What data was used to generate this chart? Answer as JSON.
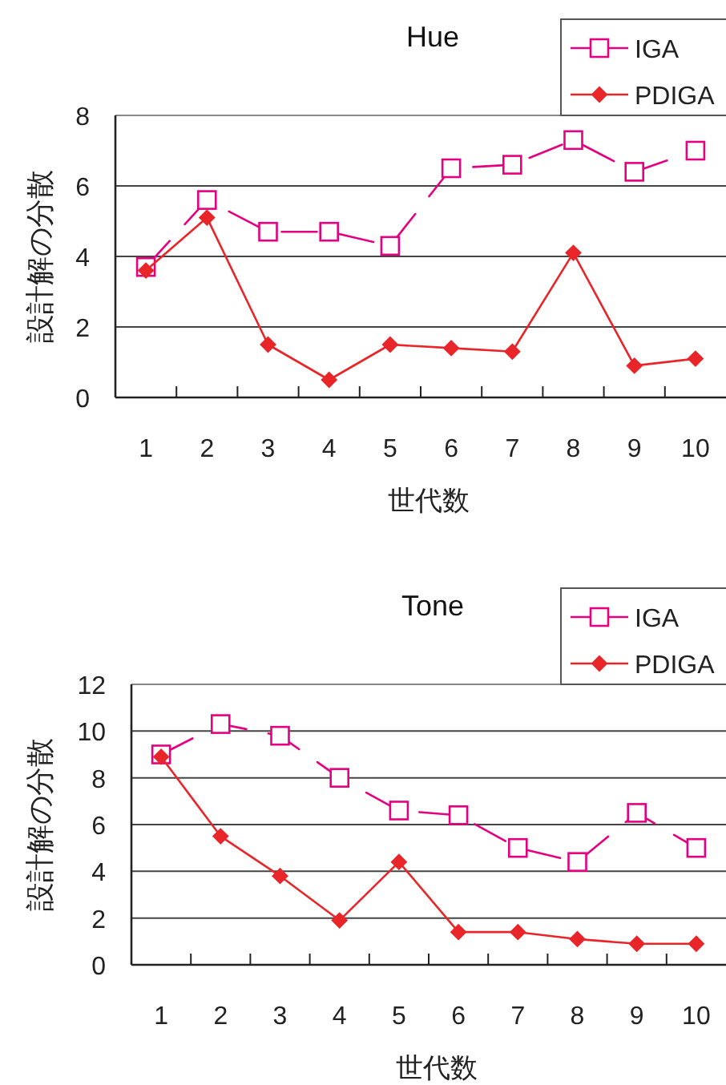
{
  "chart_data": [
    {
      "type": "line",
      "title": "Hue",
      "xlabel": "世代数",
      "ylabel": "設計解の分散",
      "categories": [
        "1",
        "2",
        "3",
        "4",
        "5",
        "6",
        "7",
        "8",
        "9",
        "10"
      ],
      "ylim": [
        0,
        8
      ],
      "yticks": [
        0,
        2,
        4,
        6,
        8
      ],
      "grid": "y",
      "legend": "top right",
      "series": [
        {
          "name": "IGA",
          "color": "#e4007f",
          "marker": "square",
          "line_style": "dashed",
          "values": [
            3.7,
            5.6,
            4.7,
            4.7,
            4.3,
            6.5,
            6.6,
            7.3,
            6.4,
            7.0
          ]
        },
        {
          "name": "PDIGA",
          "color": "#e8262a",
          "marker": "diamond",
          "line_style": "solid",
          "values": [
            3.6,
            5.1,
            1.5,
            0.5,
            1.5,
            1.4,
            1.3,
            4.1,
            0.9,
            1.1
          ]
        }
      ]
    },
    {
      "type": "line",
      "title": "Tone",
      "xlabel": "世代数",
      "ylabel": "設計解の分散",
      "categories": [
        "1",
        "2",
        "3",
        "4",
        "5",
        "6",
        "7",
        "8",
        "9",
        "10"
      ],
      "ylim": [
        0,
        12
      ],
      "yticks": [
        0,
        2,
        4,
        6,
        8,
        10,
        12
      ],
      "grid": "y",
      "legend": "top right",
      "series": [
        {
          "name": "IGA",
          "color": "#e4007f",
          "marker": "square",
          "line_style": "dashed",
          "values": [
            9.0,
            10.3,
            9.8,
            8.0,
            6.6,
            6.4,
            5.0,
            4.4,
            6.5,
            5.0
          ]
        },
        {
          "name": "PDIGA",
          "color": "#e8262a",
          "marker": "diamond",
          "line_style": "solid",
          "values": [
            8.9,
            5.5,
            3.8,
            1.9,
            4.4,
            1.4,
            1.4,
            1.1,
            0.9,
            0.9
          ]
        }
      ]
    }
  ]
}
